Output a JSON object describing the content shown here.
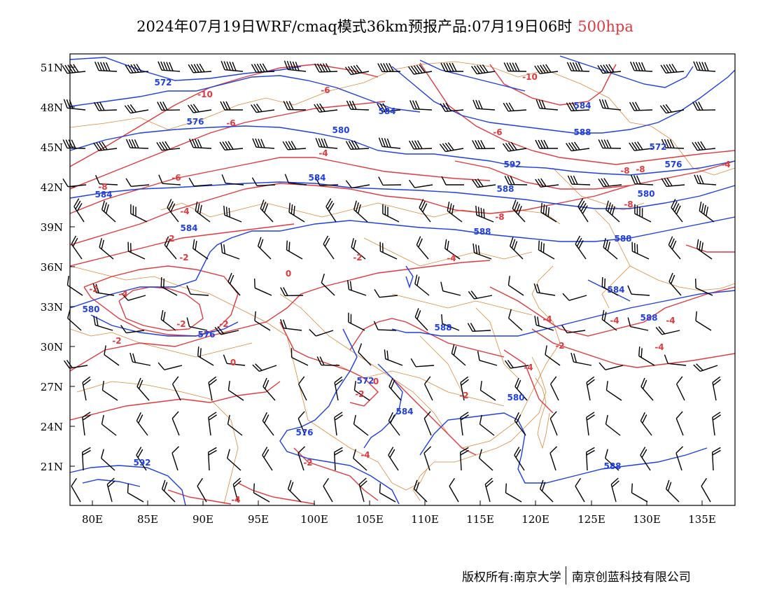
{
  "title": {
    "main": "2024年07月19日WRF/cmaq模式36km预报产品:07月19日06时",
    "level": "500hpa"
  },
  "map": {
    "lat_labels": [
      "51N",
      "48N",
      "45N",
      "42N",
      "39N",
      "36N",
      "33N",
      "30N",
      "27N",
      "24N",
      "21N"
    ],
    "lon_labels": [
      "80E",
      "85E",
      "90E",
      "95E",
      "100E",
      "105E",
      "110E",
      "115E",
      "120E",
      "125E",
      "130E",
      "135E"
    ],
    "colors": {
      "height_contour": "#1f3fe0",
      "temperature_contour": "#e0393e",
      "boundary": "#d98a3a",
      "wind_barb": "#000000"
    },
    "height_labels": [
      "572",
      "576",
      "580",
      "584",
      "584",
      "584",
      "580",
      "576",
      "588",
      "588",
      "588",
      "584",
      "588",
      "572",
      "576",
      "580",
      "588",
      "584",
      "576",
      "572",
      "580",
      "584",
      "588",
      "592",
      "588",
      "592",
      "584"
    ],
    "temperature_labels": [
      "-10",
      "-6",
      "-6",
      "-4",
      "-8",
      "-6",
      "-4",
      "-2",
      "-4",
      "-6",
      "-8",
      "-10",
      "-8",
      "-8",
      "-8",
      "-4",
      "-2",
      "-2",
      "0",
      "0",
      "-2",
      "-4",
      "-4",
      "-4",
      "-4",
      "-2",
      "0",
      "-2",
      "-2",
      "-2",
      "-2",
      "-2",
      "-4",
      "-4",
      "-4",
      "-4",
      "-2"
    ]
  },
  "footer": {
    "left": "版权所有:南京大学",
    "right": "南京创蓝科技有限公司"
  }
}
